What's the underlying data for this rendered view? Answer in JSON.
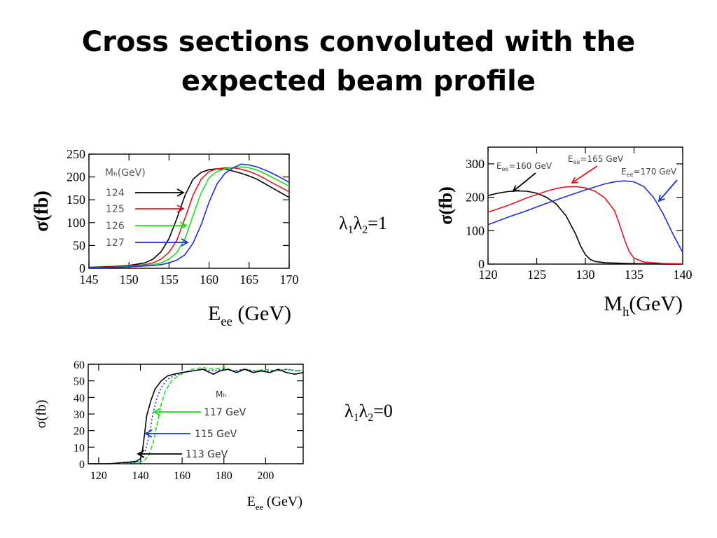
{
  "title": {
    "line1": "Cross sections convoluted with the",
    "line2": "expected beam profile"
  },
  "labels": {
    "lambda_a": {
      "base": "λ",
      "s1": "1",
      "mid": "λ",
      "s2": "2",
      "rest": "=1"
    },
    "lambda_b": {
      "base": "λ",
      "s1": "1",
      "mid": "λ",
      "s2": "2",
      "rest": "=0"
    }
  },
  "chart_data": [
    {
      "type": "line",
      "xlim": [
        145,
        170
      ],
      "ylim": [
        0,
        250
      ],
      "x_ticks": [
        "145",
        "150",
        "155",
        "160",
        "165",
        "170"
      ],
      "y_ticks": [
        "0",
        "50",
        "100",
        "150",
        "200",
        "250"
      ],
      "ylabel": "σ(fb)",
      "xlabel": {
        "main": "E",
        "sub": "ee",
        "rest": " (GeV)"
      },
      "legend_title": "Mₕ(GeV)",
      "series": [
        {
          "name": "124",
          "color": "#000000",
          "x": [
            145,
            148,
            150,
            152,
            153,
            154,
            155,
            156,
            157,
            158,
            159,
            160,
            161,
            162,
            163,
            164,
            165,
            166,
            167,
            168,
            169,
            170
          ],
          "y": [
            2,
            4,
            6,
            12,
            20,
            36,
            65,
            110,
            160,
            195,
            210,
            216,
            218,
            217,
            213,
            208,
            202,
            195,
            185,
            175,
            165,
            155
          ]
        },
        {
          "name": "125",
          "color": "#e8141c",
          "x": [
            145,
            148,
            150,
            152,
            153,
            154,
            155,
            156,
            157,
            158,
            159,
            160,
            161,
            162,
            163,
            164,
            165,
            166,
            167,
            168,
            169,
            170
          ],
          "y": [
            1,
            3,
            5,
            8,
            12,
            20,
            35,
            62,
            110,
            160,
            195,
            212,
            218,
            220,
            220,
            217,
            212,
            205,
            196,
            186,
            177,
            167
          ]
        },
        {
          "name": "126",
          "color": "#19e019",
          "x": [
            145,
            148,
            150,
            152,
            153,
            154,
            155,
            156,
            157,
            158,
            159,
            160,
            161,
            162,
            163,
            164,
            165,
            166,
            167,
            168,
            169,
            170
          ],
          "y": [
            1,
            2,
            4,
            6,
            8,
            12,
            20,
            35,
            65,
            115,
            165,
            198,
            212,
            218,
            220,
            222,
            220,
            215,
            207,
            198,
            189,
            180
          ]
        },
        {
          "name": "127",
          "color": "#1a2ee0",
          "x": [
            145,
            148,
            150,
            152,
            153,
            154,
            155,
            156,
            157,
            158,
            159,
            160,
            161,
            162,
            163,
            164,
            165,
            166,
            167,
            168,
            169,
            170
          ],
          "y": [
            1,
            2,
            3,
            5,
            6,
            8,
            12,
            18,
            30,
            55,
            95,
            145,
            185,
            208,
            220,
            228,
            226,
            222,
            215,
            207,
            198,
            188
          ]
        }
      ]
    },
    {
      "type": "line",
      "xlim": [
        120,
        140
      ],
      "ylim": [
        0,
        350
      ],
      "x_ticks": [
        "120",
        "125",
        "130",
        "135",
        "140"
      ],
      "y_ticks": [
        "0",
        "100",
        "200",
        "300"
      ],
      "ylabel": "σ(fb)",
      "xlabel": {
        "main": "M",
        "sub": "h",
        "rest": "(GeV)"
      },
      "series": [
        {
          "name": "E",
          "name_sub": "ee",
          "name_rest": "=160 GeV",
          "color": "#000000",
          "x": [
            120,
            121,
            122,
            123,
            124,
            125,
            126,
            127,
            128,
            129,
            129.5,
            130,
            130.5,
            131,
            132,
            134,
            136,
            138,
            140
          ],
          "y": [
            205,
            212,
            217,
            219,
            218,
            212,
            200,
            180,
            145,
            90,
            55,
            28,
            14,
            8,
            4,
            2,
            1,
            0,
            0
          ]
        },
        {
          "name": "E",
          "name_sub": "ee",
          "name_rest": "=165 GeV",
          "color": "#e8141c",
          "x": [
            120,
            122,
            124,
            126,
            127,
            128,
            129,
            130,
            131,
            132,
            133,
            133.5,
            134,
            134.5,
            135,
            136,
            138,
            140
          ],
          "y": [
            155,
            175,
            198,
            218,
            226,
            231,
            232,
            228,
            218,
            198,
            160,
            120,
            75,
            38,
            18,
            6,
            2,
            1
          ]
        },
        {
          "name": "E",
          "name_sub": "ee",
          "name_rest": "=170 GeV",
          "color": "#1a2ee0",
          "x": [
            120,
            122,
            124,
            126,
            128,
            130,
            132,
            133,
            134,
            135,
            136,
            137,
            138,
            139,
            140
          ],
          "y": [
            118,
            140,
            160,
            182,
            202,
            222,
            240,
            246,
            249,
            246,
            232,
            200,
            150,
            90,
            35
          ]
        }
      ]
    },
    {
      "type": "line",
      "xlim": [
        115,
        218
      ],
      "ylim": [
        0,
        60
      ],
      "x_ticks": [
        "120",
        "140",
        "160",
        "180",
        "200"
      ],
      "y_ticks": [
        "0",
        "10",
        "20",
        "30",
        "40",
        "50",
        "60"
      ],
      "ylabel": "σ(fb)",
      "xlabel": {
        "main": "E",
        "sub": "ee",
        "rest": " (GeV)"
      },
      "legend_title": "Mₕ",
      "series": [
        {
          "name": "117 GeV",
          "color": "#19e019",
          "x": [
            115,
            125,
            135,
            140,
            142,
            144,
            146,
            148,
            150,
            152,
            155,
            158,
            161,
            165,
            170,
            175,
            180,
            185,
            190,
            195,
            200,
            205,
            210,
            215,
            218
          ],
          "y": [
            0,
            0,
            0.5,
            1,
            2,
            5,
            12,
            24,
            36,
            44,
            50,
            53,
            55,
            57,
            58,
            57,
            58,
            56,
            57,
            56,
            57,
            56,
            57,
            56,
            57
          ]
        },
        {
          "name": "115 GeV",
          "color": "#1a2ee0",
          "x": [
            115,
            125,
            135,
            138,
            140,
            142,
            144,
            146,
            148,
            150,
            153,
            156,
            160,
            165,
            170,
            175,
            180,
            185,
            190,
            195,
            200,
            205,
            210,
            215,
            218
          ],
          "y": [
            0,
            0,
            0.5,
            1,
            2,
            6,
            16,
            30,
            40,
            46,
            51,
            53,
            55,
            56,
            57,
            56,
            57,
            56,
            57,
            56,
            56,
            56,
            57,
            56,
            56
          ]
        },
        {
          "name": "113 GeV",
          "color": "#000000",
          "x": [
            115,
            125,
            135,
            138,
            140,
            141,
            142,
            143,
            145,
            147,
            150,
            153,
            156,
            160,
            165,
            170,
            175,
            178,
            182,
            186,
            190,
            194,
            198,
            202,
            206,
            210,
            214,
            218
          ],
          "y": [
            0,
            0,
            1,
            1.5,
            3,
            8,
            18,
            29,
            38,
            45,
            50,
            53,
            54,
            55,
            56,
            57,
            54,
            56,
            57,
            55,
            57,
            55,
            56,
            55,
            57,
            55,
            54,
            55
          ]
        }
      ]
    }
  ]
}
